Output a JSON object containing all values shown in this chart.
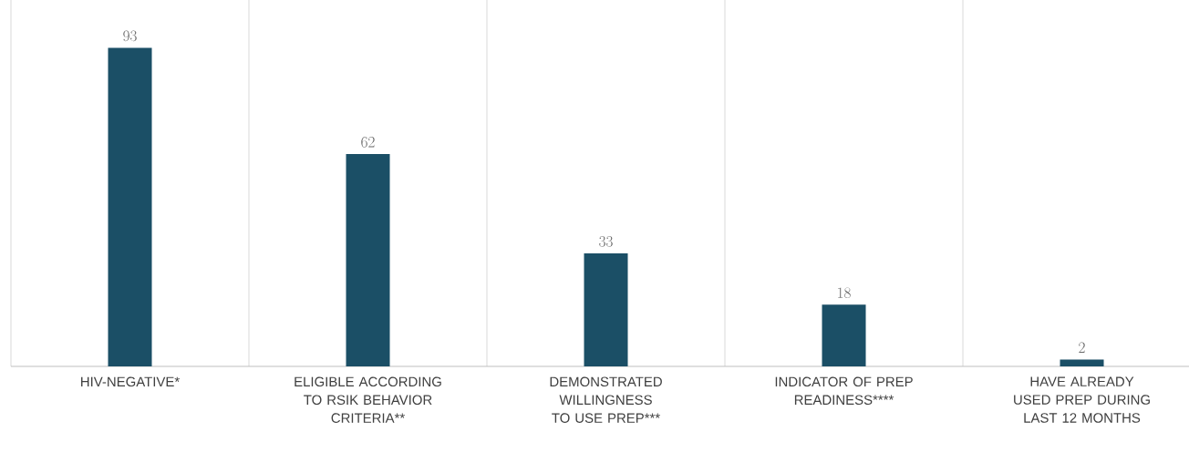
{
  "chart_data": {
    "type": "bar",
    "categories": [
      "HIV-NEGATIVE*",
      "ELIGIBLE ACCORDING TO RSIK BEHAVIOR CRITERIA**",
      "DEMONSTRATED WILLINGNESS TO USE PREP***",
      "INDICATOR OF PREP READINESS****",
      "HAVE ALREADY USED PREP DURING LAST 12 MONTHS"
    ],
    "values": [
      93,
      62,
      33,
      18,
      2
    ],
    "color": "#1b4f66",
    "data_labels": true,
    "grid": "x"
  }
}
